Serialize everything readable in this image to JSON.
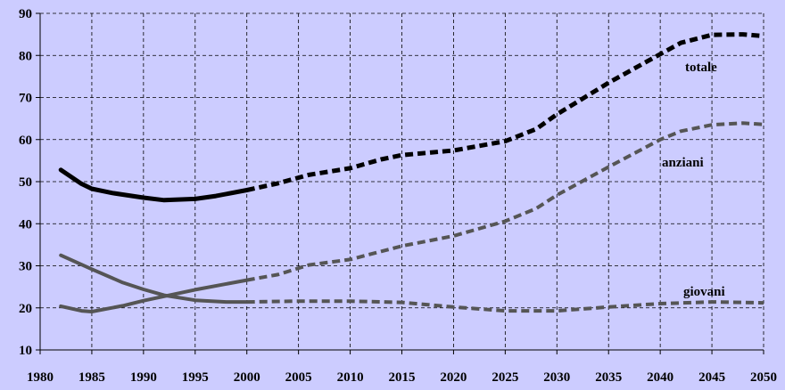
{
  "chart_data": {
    "type": "line",
    "title": "",
    "xlabel": "",
    "ylabel": "",
    "xlim": [
      1980,
      2050
    ],
    "ylim": [
      10,
      90
    ],
    "grid": true,
    "legend": "none",
    "x_ticks": [
      "1980",
      "1985",
      "1990",
      "1995",
      "2000",
      "2005",
      "2010",
      "2015",
      "2020",
      "2025",
      "2030",
      "2035",
      "2040",
      "2045",
      "2050"
    ],
    "y_ticks": [
      "10",
      "20",
      "30",
      "40",
      "50",
      "60",
      "70",
      "80",
      "90"
    ],
    "colors": {
      "background": "#ccccff",
      "grid": "#000000",
      "totale": "#000000",
      "anziani": "#555555",
      "giovani": "#555555"
    },
    "series": [
      {
        "name": "totale",
        "historical": [
          [
            1982,
            52.8
          ],
          [
            1984,
            49.5
          ],
          [
            1985,
            48.3
          ],
          [
            1987,
            47.3
          ],
          [
            1990,
            46.2
          ],
          [
            1992,
            45.6
          ],
          [
            1995,
            45.9
          ],
          [
            1997,
            46.6
          ],
          [
            2000,
            48.0
          ]
        ],
        "projection": [
          [
            2000,
            48.0
          ],
          [
            2003,
            49.6
          ],
          [
            2006,
            51.6
          ],
          [
            2010,
            53.2
          ],
          [
            2013,
            55.3
          ],
          [
            2015,
            56.3
          ],
          [
            2020,
            57.4
          ],
          [
            2025,
            59.6
          ],
          [
            2028,
            62.5
          ],
          [
            2030,
            66.0
          ],
          [
            2035,
            73.5
          ],
          [
            2040,
            80.3
          ],
          [
            2042,
            83.0
          ],
          [
            2045,
            84.9
          ],
          [
            2048,
            85.0
          ],
          [
            2050,
            84.6
          ]
        ]
      },
      {
        "name": "anziani",
        "historical": [
          [
            1982,
            20.4
          ],
          [
            1984,
            19.3
          ],
          [
            1985,
            19.1
          ],
          [
            1988,
            20.5
          ],
          [
            1990,
            21.7
          ],
          [
            1995,
            24.3
          ],
          [
            2000,
            26.6
          ]
        ],
        "projection": [
          [
            2000,
            26.6
          ],
          [
            2003,
            27.9
          ],
          [
            2006,
            30.2
          ],
          [
            2010,
            31.5
          ],
          [
            2015,
            34.7
          ],
          [
            2020,
            37.1
          ],
          [
            2025,
            40.6
          ],
          [
            2028,
            43.6
          ],
          [
            2030,
            46.8
          ],
          [
            2035,
            53.5
          ],
          [
            2040,
            60.0
          ],
          [
            2042,
            62.0
          ],
          [
            2045,
            63.5
          ],
          [
            2048,
            63.9
          ],
          [
            2050,
            63.6
          ]
        ]
      },
      {
        "name": "giovani",
        "historical": [
          [
            1982,
            32.5
          ],
          [
            1985,
            29.2
          ],
          [
            1988,
            26.0
          ],
          [
            1990,
            24.4
          ],
          [
            1992,
            23.0
          ],
          [
            1995,
            21.8
          ],
          [
            1998,
            21.4
          ],
          [
            2000,
            21.4
          ]
        ],
        "projection": [
          [
            2000,
            21.4
          ],
          [
            2005,
            21.6
          ],
          [
            2010,
            21.6
          ],
          [
            2015,
            21.3
          ],
          [
            2020,
            20.2
          ],
          [
            2025,
            19.3
          ],
          [
            2030,
            19.3
          ],
          [
            2035,
            20.2
          ],
          [
            2040,
            21.0
          ],
          [
            2045,
            21.4
          ],
          [
            2050,
            21.2
          ]
        ]
      }
    ]
  }
}
